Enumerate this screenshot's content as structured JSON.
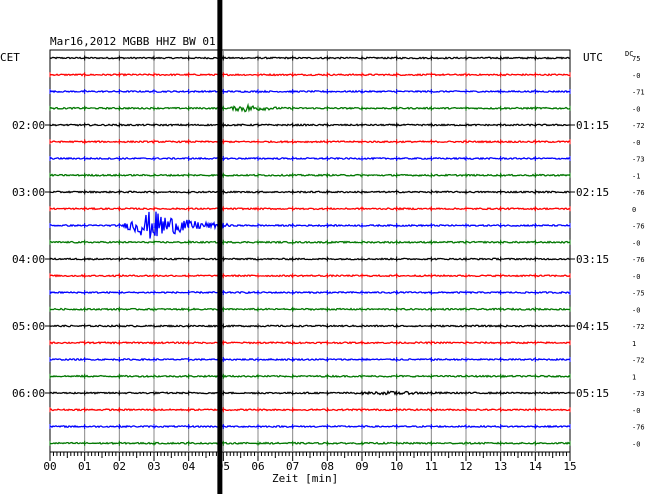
{
  "chart_data": {
    "type": "line",
    "title": "Mar16,2012   MGBB HHZ BW 01",
    "left_tz": "CET",
    "right_tz": "UTC",
    "dc_label": "DC",
    "xlabel": "Zeit [min]",
    "x_ticks": [
      "00",
      "01",
      "02",
      "03",
      "04",
      "05",
      "06",
      "07",
      "08",
      "09",
      "10",
      "11",
      "12",
      "13",
      "14",
      "15"
    ],
    "xlim": [
      0,
      15
    ],
    "left_hour_labels": [
      "02:00",
      "03:00",
      "04:00",
      "05:00",
      "06:00"
    ],
    "right_hour_labels": [
      "01:15",
      "02:15",
      "03:15",
      "04:15",
      "05:15"
    ],
    "trace_colors": [
      "#000000",
      "#ff0000",
      "#0000ff",
      "#007700"
    ],
    "traces": [
      {
        "color": "#000000",
        "dc": "75"
      },
      {
        "color": "#ff0000",
        "dc": "-0"
      },
      {
        "color": "#0000ff",
        "dc": "-71"
      },
      {
        "color": "#007700",
        "dc": "-0"
      },
      {
        "color": "#000000",
        "dc": "-72"
      },
      {
        "color": "#ff0000",
        "dc": "-0"
      },
      {
        "color": "#0000ff",
        "dc": "-73"
      },
      {
        "color": "#007700",
        "dc": "-1"
      },
      {
        "color": "#000000",
        "dc": "-76"
      },
      {
        "color": "#ff0000",
        "dc": "0"
      },
      {
        "color": "#0000ff",
        "dc": "-76"
      },
      {
        "color": "#007700",
        "dc": "-0"
      },
      {
        "color": "#000000",
        "dc": "-76"
      },
      {
        "color": "#ff0000",
        "dc": "-0"
      },
      {
        "color": "#0000ff",
        "dc": "-75"
      },
      {
        "color": "#007700",
        "dc": "-0"
      },
      {
        "color": "#000000",
        "dc": "-72"
      },
      {
        "color": "#ff0000",
        "dc": "1"
      },
      {
        "color": "#0000ff",
        "dc": "-72"
      },
      {
        "color": "#007700",
        "dc": "1"
      },
      {
        "color": "#000000",
        "dc": "-73"
      },
      {
        "color": "#ff0000",
        "dc": "-0"
      },
      {
        "color": "#0000ff",
        "dc": "-76"
      },
      {
        "color": "#007700",
        "dc": "-0"
      }
    ],
    "events": [
      {
        "trace": 3,
        "start_min": 5.0,
        "end_min": 7.2,
        "peak_amp": 0.45
      },
      {
        "trace": 10,
        "start_min": 2.0,
        "end_min": 5.2,
        "peak_amp": 1.7
      },
      {
        "trace": 20,
        "start_min": 7.6,
        "end_min": 15.0,
        "peak_amp": 0.18
      }
    ],
    "marker_minute": 4.9,
    "grid": true
  }
}
